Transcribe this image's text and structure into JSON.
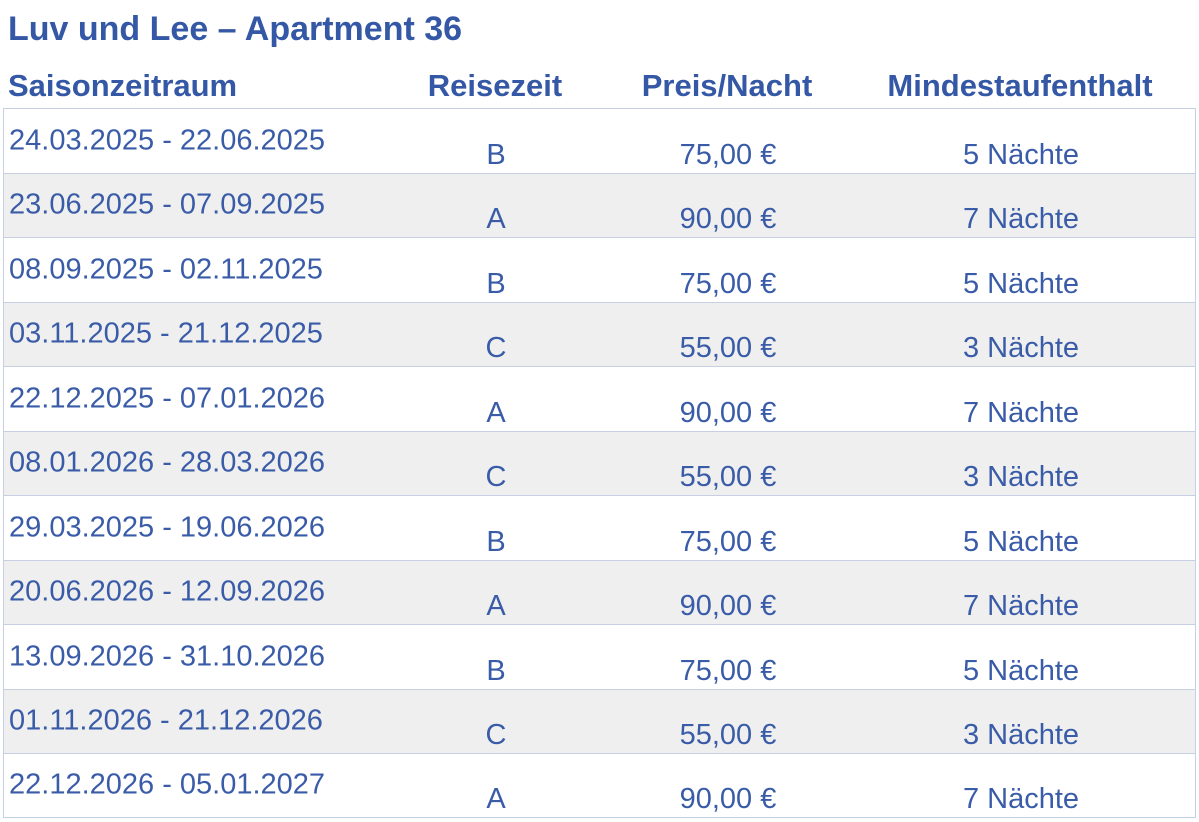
{
  "title": "Luv und Lee – Apartment 36",
  "table": {
    "headers": [
      "Saisonzeitraum",
      "Reisezeit",
      "Preis/Nacht",
      "Mindestaufenthalt"
    ],
    "rows": [
      [
        "24.03.2025 - 22.06.2025",
        "B",
        "75,00 €",
        "5 Nächte"
      ],
      [
        "23.06.2025 - 07.09.2025",
        "A",
        "90,00 €",
        "7 Nächte"
      ],
      [
        "08.09.2025 - 02.11.2025",
        "B",
        "75,00 €",
        "5 Nächte"
      ],
      [
        "03.11.2025 - 21.12.2025",
        "C",
        "55,00 €",
        "3 Nächte"
      ],
      [
        "22.12.2025 - 07.01.2026",
        "A",
        "90,00 €",
        "7 Nächte"
      ],
      [
        "08.01.2026 - 28.03.2026",
        "C",
        "55,00 €",
        "3 Nächte"
      ],
      [
        "29.03.2025 - 19.06.2026",
        "B",
        "75,00 €",
        "5 Nächte"
      ],
      [
        "20.06.2026 - 12.09.2026",
        "A",
        "90,00 €",
        "7 Nächte"
      ],
      [
        "13.09.2026 - 31.10.2026",
        "B",
        "75,00 €",
        "5 Nächte"
      ],
      [
        "01.11.2026 - 21.12.2026",
        "C",
        "55,00 €",
        "3 Nächte"
      ],
      [
        "22.12.2026 - 05.01.2027",
        "A",
        "90,00 €",
        "7 Nächte"
      ]
    ]
  }
}
